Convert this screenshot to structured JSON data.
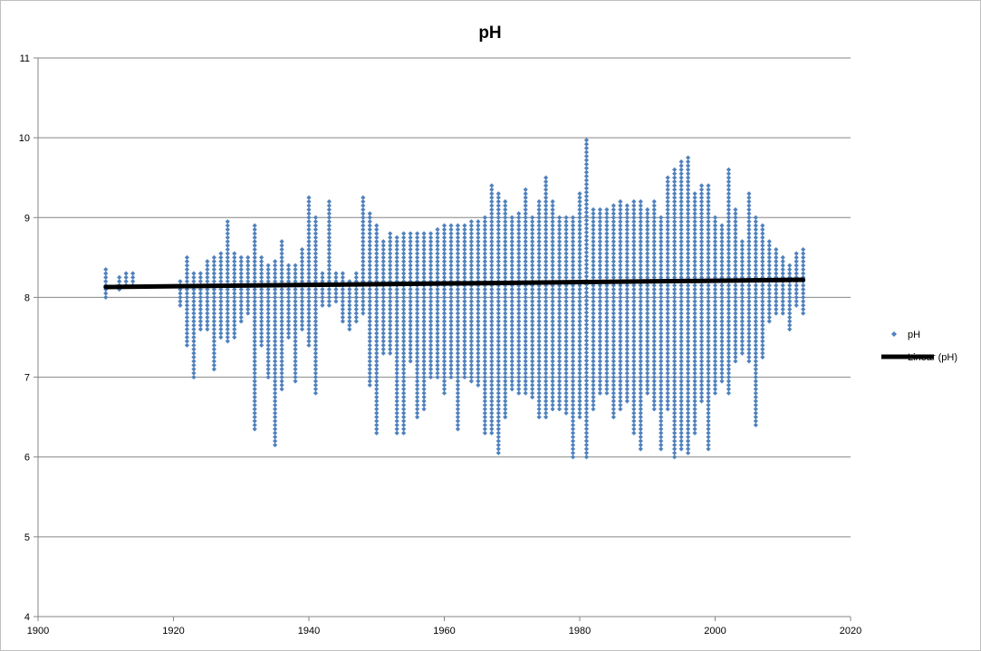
{
  "chart_data": {
    "type": "scatter",
    "title": "pH",
    "xlabel": "",
    "ylabel": "",
    "xlim": [
      1900,
      2020
    ],
    "ylim": [
      4,
      11
    ],
    "x_ticks": [
      1900,
      1920,
      1940,
      1960,
      1980,
      2000,
      2020
    ],
    "y_ticks": [
      4,
      5,
      6,
      7,
      8,
      9,
      10,
      11
    ],
    "grid": "horizontal",
    "legend": "right",
    "series": [
      {
        "name": "pH",
        "kind": "points",
        "color": "#4f81bd",
        "marker": "diamond",
        "columns": [
          {
            "x": 1910,
            "lo": 8.0,
            "hi": 8.35
          },
          {
            "x": 1912,
            "lo": 8.1,
            "hi": 8.25
          },
          {
            "x": 1913,
            "lo": 8.15,
            "hi": 8.3
          },
          {
            "x": 1914,
            "lo": 8.15,
            "hi": 8.3
          },
          {
            "x": 1921,
            "lo": 7.9,
            "hi": 8.2
          },
          {
            "x": 1922,
            "lo": 7.4,
            "hi": 8.5
          },
          {
            "x": 1923,
            "lo": 7.0,
            "hi": 8.3
          },
          {
            "x": 1924,
            "lo": 7.6,
            "hi": 8.3
          },
          {
            "x": 1925,
            "lo": 7.6,
            "hi": 8.45
          },
          {
            "x": 1926,
            "lo": 7.1,
            "hi": 8.5
          },
          {
            "x": 1927,
            "lo": 7.5,
            "hi": 8.55
          },
          {
            "x": 1928,
            "lo": 7.45,
            "hi": 8.95
          },
          {
            "x": 1929,
            "lo": 7.5,
            "hi": 8.55
          },
          {
            "x": 1930,
            "lo": 7.7,
            "hi": 8.5
          },
          {
            "x": 1931,
            "lo": 7.8,
            "hi": 8.5
          },
          {
            "x": 1932,
            "lo": 6.35,
            "hi": 8.9
          },
          {
            "x": 1933,
            "lo": 7.4,
            "hi": 8.5
          },
          {
            "x": 1934,
            "lo": 7.0,
            "hi": 8.4
          },
          {
            "x": 1935,
            "lo": 6.15,
            "hi": 8.45
          },
          {
            "x": 1936,
            "lo": 6.85,
            "hi": 8.7
          },
          {
            "x": 1937,
            "lo": 7.5,
            "hi": 8.4
          },
          {
            "x": 1938,
            "lo": 6.95,
            "hi": 8.4
          },
          {
            "x": 1939,
            "lo": 7.6,
            "hi": 8.6
          },
          {
            "x": 1940,
            "lo": 7.4,
            "hi": 9.25
          },
          {
            "x": 1941,
            "lo": 6.8,
            "hi": 9.0
          },
          {
            "x": 1942,
            "lo": 7.9,
            "hi": 8.3
          },
          {
            "x": 1943,
            "lo": 7.9,
            "hi": 9.2
          },
          {
            "x": 1944,
            "lo": 7.95,
            "hi": 8.3
          },
          {
            "x": 1945,
            "lo": 7.7,
            "hi": 8.3
          },
          {
            "x": 1946,
            "lo": 7.6,
            "hi": 8.2
          },
          {
            "x": 1947,
            "lo": 7.7,
            "hi": 8.3
          },
          {
            "x": 1948,
            "lo": 7.8,
            "hi": 9.25
          },
          {
            "x": 1949,
            "lo": 6.9,
            "hi": 9.05
          },
          {
            "x": 1950,
            "lo": 6.3,
            "hi": 8.9
          },
          {
            "x": 1951,
            "lo": 7.3,
            "hi": 8.7
          },
          {
            "x": 1952,
            "lo": 7.3,
            "hi": 8.8
          },
          {
            "x": 1953,
            "lo": 6.3,
            "hi": 8.75
          },
          {
            "x": 1954,
            "lo": 6.3,
            "hi": 8.8
          },
          {
            "x": 1955,
            "lo": 7.2,
            "hi": 8.8
          },
          {
            "x": 1956,
            "lo": 6.5,
            "hi": 8.8
          },
          {
            "x": 1957,
            "lo": 6.6,
            "hi": 8.8
          },
          {
            "x": 1958,
            "lo": 7.0,
            "hi": 8.8
          },
          {
            "x": 1959,
            "lo": 7.0,
            "hi": 8.85
          },
          {
            "x": 1960,
            "lo": 6.8,
            "hi": 8.9
          },
          {
            "x": 1961,
            "lo": 7.0,
            "hi": 8.9
          },
          {
            "x": 1962,
            "lo": 6.35,
            "hi": 8.9
          },
          {
            "x": 1963,
            "lo": 7.0,
            "hi": 8.9
          },
          {
            "x": 1964,
            "lo": 6.95,
            "hi": 8.95
          },
          {
            "x": 1965,
            "lo": 6.9,
            "hi": 8.95
          },
          {
            "x": 1966,
            "lo": 6.3,
            "hi": 9.0
          },
          {
            "x": 1967,
            "lo": 6.3,
            "hi": 9.4
          },
          {
            "x": 1968,
            "lo": 6.05,
            "hi": 9.3
          },
          {
            "x": 1969,
            "lo": 6.5,
            "hi": 9.2
          },
          {
            "x": 1970,
            "lo": 6.85,
            "hi": 9.0
          },
          {
            "x": 1971,
            "lo": 6.8,
            "hi": 9.05
          },
          {
            "x": 1972,
            "lo": 6.8,
            "hi": 9.35
          },
          {
            "x": 1973,
            "lo": 6.75,
            "hi": 9.0
          },
          {
            "x": 1974,
            "lo": 6.5,
            "hi": 9.2
          },
          {
            "x": 1975,
            "lo": 6.5,
            "hi": 9.5
          },
          {
            "x": 1976,
            "lo": 6.6,
            "hi": 9.2
          },
          {
            "x": 1977,
            "lo": 6.6,
            "hi": 9.0
          },
          {
            "x": 1978,
            "lo": 6.55,
            "hi": 9.0
          },
          {
            "x": 1979,
            "lo": 6.0,
            "hi": 9.0
          },
          {
            "x": 1980,
            "lo": 6.5,
            "hi": 9.3
          },
          {
            "x": 1981,
            "lo": 6.0,
            "hi": 9.97
          },
          {
            "x": 1982,
            "lo": 6.6,
            "hi": 9.1
          },
          {
            "x": 1983,
            "lo": 6.8,
            "hi": 9.1
          },
          {
            "x": 1984,
            "lo": 6.8,
            "hi": 9.1
          },
          {
            "x": 1985,
            "lo": 6.5,
            "hi": 9.15
          },
          {
            "x": 1986,
            "lo": 6.6,
            "hi": 9.2
          },
          {
            "x": 1987,
            "lo": 6.7,
            "hi": 9.15
          },
          {
            "x": 1988,
            "lo": 6.3,
            "hi": 9.2
          },
          {
            "x": 1989,
            "lo": 6.1,
            "hi": 9.2
          },
          {
            "x": 1990,
            "lo": 6.8,
            "hi": 9.1
          },
          {
            "x": 1991,
            "lo": 6.6,
            "hi": 9.2
          },
          {
            "x": 1992,
            "lo": 6.1,
            "hi": 9.0
          },
          {
            "x": 1993,
            "lo": 6.6,
            "hi": 9.5
          },
          {
            "x": 1994,
            "lo": 6.0,
            "hi": 9.6
          },
          {
            "x": 1995,
            "lo": 6.1,
            "hi": 9.7
          },
          {
            "x": 1996,
            "lo": 6.05,
            "hi": 9.75
          },
          {
            "x": 1997,
            "lo": 6.3,
            "hi": 9.3
          },
          {
            "x": 1998,
            "lo": 6.7,
            "hi": 9.4
          },
          {
            "x": 1999,
            "lo": 6.1,
            "hi": 9.4
          },
          {
            "x": 2000,
            "lo": 6.8,
            "hi": 9.0
          },
          {
            "x": 2001,
            "lo": 6.95,
            "hi": 8.9
          },
          {
            "x": 2002,
            "lo": 6.8,
            "hi": 9.6
          },
          {
            "x": 2003,
            "lo": 7.2,
            "hi": 9.1
          },
          {
            "x": 2004,
            "lo": 7.3,
            "hi": 8.7
          },
          {
            "x": 2005,
            "lo": 7.2,
            "hi": 9.3
          },
          {
            "x": 2006,
            "lo": 6.4,
            "hi": 9.0
          },
          {
            "x": 2007,
            "lo": 7.25,
            "hi": 8.9
          },
          {
            "x": 2008,
            "lo": 7.7,
            "hi": 8.7
          },
          {
            "x": 2009,
            "lo": 7.8,
            "hi": 8.6
          },
          {
            "x": 2010,
            "lo": 7.8,
            "hi": 8.5
          },
          {
            "x": 2011,
            "lo": 7.6,
            "hi": 8.4
          },
          {
            "x": 2012,
            "lo": 7.9,
            "hi": 8.55
          },
          {
            "x": 2013,
            "lo": 7.8,
            "hi": 8.6
          }
        ]
      },
      {
        "name": "Linear (pH)",
        "kind": "trendline",
        "color": "#000000",
        "x": [
          1910,
          2013
        ],
        "y": [
          8.13,
          8.22
        ]
      }
    ]
  }
}
